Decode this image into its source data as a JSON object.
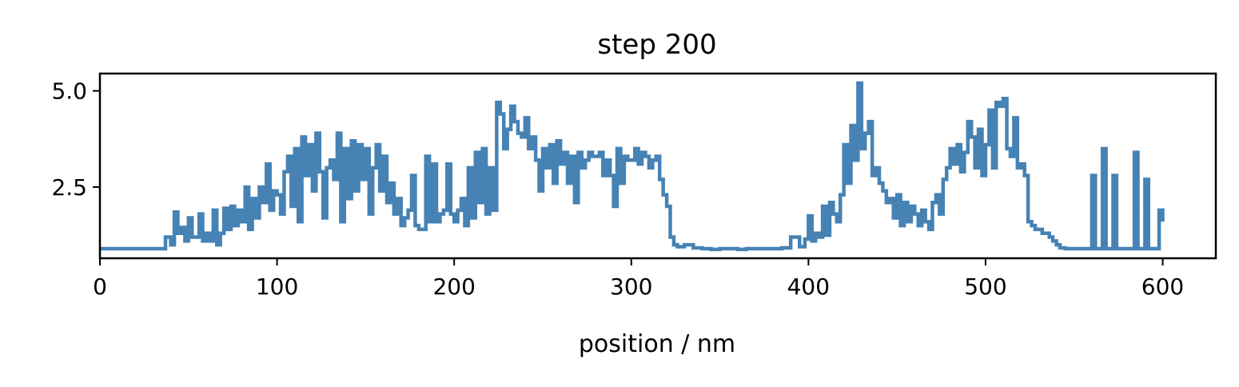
{
  "chart_data": {
    "type": "line",
    "title": "step 200",
    "xlabel": "position / nm",
    "ylabel": "",
    "xlim": [
      0,
      630
    ],
    "ylim": [
      0.65,
      5.45
    ],
    "x_ticks": [
      0,
      100,
      200,
      300,
      400,
      500,
      600
    ],
    "x_tick_labels": [
      "0",
      "100",
      "200",
      "300",
      "400",
      "500",
      "600"
    ],
    "y_ticks": [
      2.5,
      5.0
    ],
    "y_tick_labels": [
      "2.5",
      "5.0"
    ],
    "grid": false,
    "legend": false,
    "line_color": "#4682b4",
    "series": [
      {
        "x": [
          0,
          10,
          20,
          30,
          37,
          40,
          42,
          44,
          46,
          48,
          50,
          52,
          54,
          56,
          58,
          60,
          62,
          64,
          66,
          68,
          70,
          72,
          74,
          76,
          78,
          80,
          82,
          84,
          86,
          88,
          90,
          92,
          94,
          96,
          98,
          100,
          102,
          104,
          106,
          108,
          110,
          112,
          114,
          116,
          118,
          120,
          122,
          124,
          126,
          128,
          130,
          132,
          134,
          136,
          138,
          140,
          142,
          144,
          146,
          148,
          150,
          152,
          154,
          156,
          158,
          160,
          162,
          164,
          166,
          168,
          170,
          172,
          174,
          176,
          178,
          180,
          182,
          184,
          186,
          188,
          190,
          192,
          194,
          196,
          198,
          200,
          202,
          204,
          206,
          208,
          210,
          212,
          214,
          216,
          218,
          220,
          222,
          224,
          226,
          228,
          230,
          232,
          234,
          236,
          238,
          240,
          242,
          244,
          246,
          248,
          250,
          252,
          254,
          256,
          258,
          260,
          262,
          264,
          266,
          268,
          270,
          272,
          274,
          276,
          278,
          280,
          282,
          284,
          286,
          288,
          290,
          292,
          294,
          296,
          298,
          300,
          302,
          304,
          306,
          308,
          310,
          312,
          314,
          316,
          318,
          320,
          322,
          324,
          326,
          330,
          335,
          340,
          345,
          350,
          355,
          360,
          365,
          370,
          375,
          380,
          385,
          390,
          395,
          398,
          400,
          402,
          404,
          406,
          408,
          410,
          412,
          414,
          416,
          418,
          420,
          422,
          424,
          426,
          428,
          430,
          432,
          434,
          436,
          438,
          440,
          442,
          444,
          446,
          448,
          450,
          452,
          454,
          456,
          458,
          460,
          462,
          464,
          466,
          468,
          470,
          472,
          474,
          476,
          478,
          480,
          482,
          484,
          486,
          488,
          490,
          492,
          494,
          496,
          498,
          500,
          502,
          504,
          506,
          508,
          510,
          512,
          514,
          516,
          518,
          520,
          522,
          524,
          526,
          528,
          530,
          532,
          534,
          536,
          538,
          540,
          542,
          545,
          550,
          555,
          558,
          560,
          562,
          564,
          566,
          568,
          570,
          572,
          574,
          576,
          578,
          580,
          582,
          584,
          586,
          588,
          590,
          592,
          594,
          596,
          598,
          600
        ],
        "y": [
          0.9,
          0.9,
          0.9,
          0.9,
          1.2,
          1.0,
          1.85,
          1.3,
          1.45,
          1.1,
          1.7,
          1.2,
          1.2,
          1.8,
          1.1,
          1.3,
          1.1,
          1.9,
          1.0,
          1.3,
          1.95,
          1.4,
          2.0,
          1.5,
          1.9,
          1.6,
          2.5,
          1.4,
          2.2,
          1.7,
          2.5,
          2.1,
          3.1,
          1.9,
          2.4,
          2.3,
          1.8,
          2.9,
          3.3,
          2.0,
          3.5,
          1.6,
          3.8,
          2.8,
          3.6,
          2.4,
          3.9,
          2.9,
          1.7,
          3.0,
          3.2,
          2.7,
          3.9,
          1.6,
          3.5,
          2.2,
          3.7,
          2.4,
          3.6,
          2.7,
          3.5,
          1.8,
          3.0,
          3.6,
          2.4,
          3.3,
          2.1,
          2.6,
          1.8,
          2.2,
          1.5,
          1.7,
          1.9,
          2.8,
          1.5,
          1.4,
          1.4,
          3.3,
          1.6,
          3.1,
          1.6,
          1.8,
          1.9,
          3.1,
          1.8,
          1.6,
          1.9,
          2.2,
          1.5,
          3.0,
          1.7,
          3.4,
          2.1,
          3.5,
          1.8,
          3.0,
          1.9,
          4.7,
          4.4,
          3.5,
          4.0,
          4.6,
          4.2,
          3.9,
          3.8,
          4.3,
          3.5,
          3.8,
          3.2,
          2.4,
          3.5,
          3.0,
          3.6,
          2.6,
          3.7,
          3.1,
          3.4,
          2.6,
          3.3,
          2.1,
          3.4,
          3.0,
          3.2,
          3.4,
          3.3,
          3.3,
          3.4,
          2.8,
          3.2,
          2.8,
          2.0,
          3.5,
          2.6,
          3.3,
          3.2,
          3.2,
          3.5,
          3.1,
          3.4,
          3.3,
          3.0,
          3.2,
          3.3,
          2.7,
          2.3,
          2.0,
          1.2,
          1.0,
          0.95,
          1.0,
          0.92,
          0.9,
          0.88,
          0.9,
          0.9,
          0.88,
          0.9,
          0.9,
          0.9,
          0.9,
          0.92,
          1.2,
          0.95,
          1.15,
          1.75,
          1.1,
          1.3,
          1.2,
          2.0,
          1.25,
          2.1,
          1.8,
          1.6,
          2.3,
          3.6,
          2.6,
          4.1,
          3.2,
          5.2,
          3.5,
          3.9,
          4.2,
          2.8,
          3.0,
          2.6,
          2.4,
          2.1,
          2.2,
          1.7,
          2.3,
          1.5,
          2.1,
          1.6,
          2.0,
          1.8,
          1.5,
          1.9,
          1.6,
          1.4,
          2.1,
          2.3,
          1.8,
          2.7,
          3.0,
          3.5,
          3.1,
          3.6,
          2.9,
          3.4,
          4.2,
          3.8,
          3.0,
          4.0,
          2.8,
          3.6,
          4.5,
          3.0,
          4.7,
          4.6,
          4.8,
          3.5,
          3.3,
          4.3,
          3.0,
          3.1,
          2.8,
          1.6,
          1.5,
          1.4,
          1.4,
          1.3,
          1.3,
          1.2,
          1.1,
          1.0,
          0.92,
          0.9,
          0.9,
          0.9,
          0.9,
          2.8,
          0.9,
          0.9,
          3.5,
          0.9,
          0.9,
          2.8,
          0.9,
          0.9,
          0.9,
          0.9,
          0.9,
          3.4,
          0.9,
          0.9,
          2.7,
          0.9,
          0.9,
          0.9,
          1.9,
          1.6
        ]
      }
    ]
  }
}
